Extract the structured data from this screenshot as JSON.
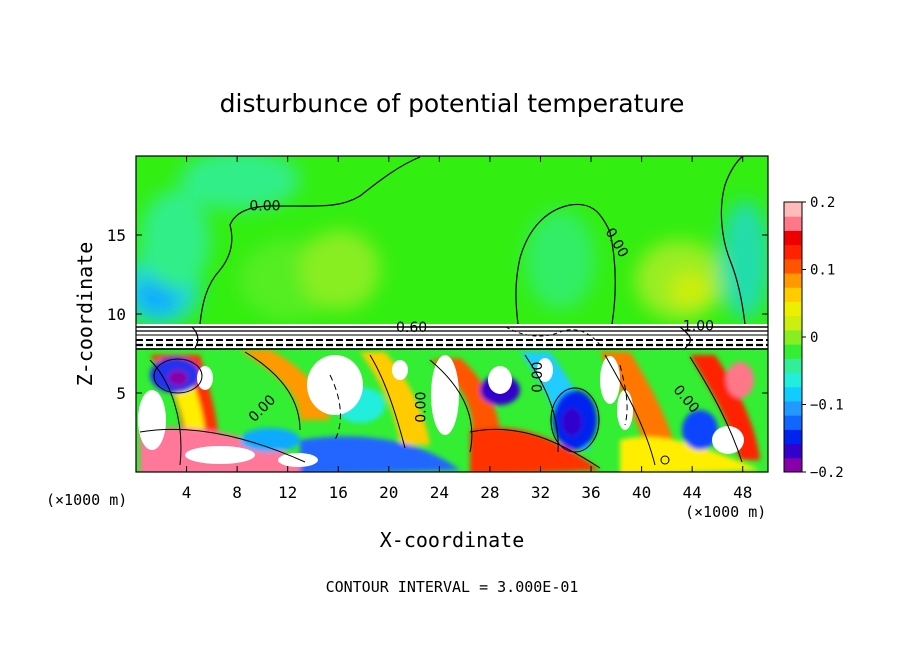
{
  "chart_data": {
    "type": "contour",
    "title": "disturbunce of potential temperature",
    "xlabel": "X-coordinate",
    "ylabel": "Z-coordinate",
    "x_unit_left": "(×1000 m)",
    "x_unit_right": "(×1000 m)",
    "xlim": [
      0,
      50
    ],
    "ylim": [
      0,
      20
    ],
    "x_ticks": [
      4,
      8,
      12,
      16,
      20,
      24,
      28,
      32,
      36,
      40,
      44,
      48
    ],
    "y_ticks": [
      5,
      10,
      15
    ],
    "footer": "CONTOUR INTERVAL = 3.000E-01",
    "colorbar": {
      "min": -0.2,
      "max": 0.2,
      "ticks": [
        {
          "value": 0.2,
          "label": "0.2"
        },
        {
          "value": 0.1,
          "label": "0.1"
        },
        {
          "value": 0,
          "label": "0"
        },
        {
          "value": -0.1,
          "label": "−0.1"
        },
        {
          "value": -0.2,
          "label": "−0.2"
        }
      ],
      "colors": [
        "#8800aa",
        "#3300cc",
        "#0022ee",
        "#1166ff",
        "#2299ff",
        "#11ccff",
        "#22eedd",
        "#33ee99",
        "#33ee33",
        "#88ee22",
        "#ccee11",
        "#eeee00",
        "#ffcc00",
        "#ff9900",
        "#ff5500",
        "#ff2200",
        "#ee0000",
        "#ff7788",
        "#ffbbbb"
      ]
    },
    "contour_labels": [
      {
        "x": 10.2,
        "z": 16.8,
        "text": "0.00",
        "angle": 0
      },
      {
        "x": 21.8,
        "z": 9.1,
        "text": "0.60",
        "angle": 0
      },
      {
        "x": 38.0,
        "z": 14.5,
        "text": "0.00",
        "angle": 60
      },
      {
        "x": 44.5,
        "z": 9.2,
        "text": "1.00",
        "angle": 0
      },
      {
        "x": 10.0,
        "z": 4.0,
        "text": "0.00",
        "angle": -45
      },
      {
        "x": 22.6,
        "z": 4.1,
        "text": "0.00",
        "angle": -90
      },
      {
        "x": 31.8,
        "z": 6.0,
        "text": "0.00",
        "angle": -90
      },
      {
        "x": 43.5,
        "z": 4.6,
        "text": "0.00",
        "angle": 50
      }
    ]
  }
}
